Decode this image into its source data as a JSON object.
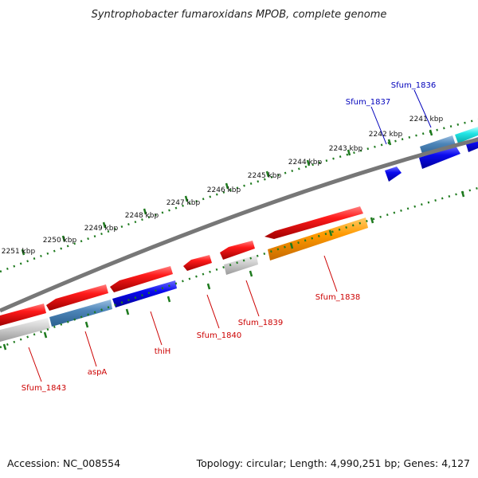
{
  "title": "Syntrophobacter fumaroxidans MPOB, complete genome",
  "accession": "Accession: NC_008554",
  "summary": "Topology: circular; Length: 4,990,251 bp; Genes: 4,127",
  "colors": {
    "backbone": "#777777",
    "ticks": "#1e7a1e",
    "label_red": "#cc0000",
    "label_blue": "#0000bb"
  },
  "scale_labels": [
    "2241 kbp",
    "2242 kbp",
    "2243 kbp",
    "2244 kbp",
    "2245 kbp",
    "2246 kbp",
    "2247 kbp",
    "2248 kbp",
    "2249 kbp",
    "2250 kbp",
    "2251 kbp"
  ],
  "gene_labels": [
    {
      "text": "Sfum_1836",
      "color": "blue"
    },
    {
      "text": "Sfum_1837",
      "color": "blue"
    },
    {
      "text": "Sfum_1838",
      "color": "red"
    },
    {
      "text": "Sfum_1839",
      "color": "red"
    },
    {
      "text": "Sfum_1840",
      "color": "red"
    },
    {
      "text": "thiH",
      "color": "red"
    },
    {
      "text": "aspA",
      "color": "red"
    },
    {
      "text": "Sfum_1843",
      "color": "red"
    }
  ]
}
